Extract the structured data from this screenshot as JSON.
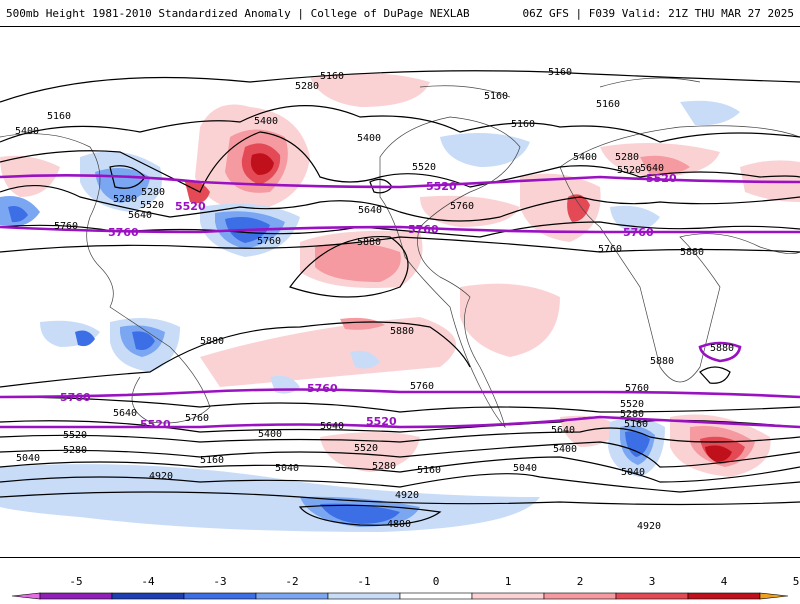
{
  "header": {
    "title": "500mb Height 1981-2010 Standardized Anomaly | College of DuPage NEXLAB",
    "run_info": "06Z GFS | F039 Valid: 21Z THU MAR 27 2025"
  },
  "contour_labels": [
    "5160",
    "5160",
    "5280",
    "5160",
    "5160",
    "5400",
    "5160",
    "5400",
    "5400",
    "5160",
    "5280",
    "5520",
    "5400",
    "5280",
    "5640",
    "5520",
    "5640",
    "5280",
    "5520",
    "5640",
    "5760",
    "5760",
    "5760",
    "5760",
    "5880",
    "5880",
    "5880",
    "5880",
    "5880",
    "5760",
    "5760",
    "5640",
    "5760",
    "5520",
    "5280",
    "5040",
    "5400",
    "5640",
    "5520",
    "5160",
    "5280",
    "5040",
    "5160",
    "5040",
    "5400",
    "5640",
    "5520",
    "5280",
    "5160",
    "5040",
    "4920",
    "4920",
    "4800",
    "4920",
    "5880"
  ],
  "purple_labels": [
    "5520",
    "5520",
    "5520",
    "5760",
    "5760",
    "5760",
    "5760",
    "5760",
    "5520",
    "5520"
  ],
  "colorbar": {
    "ticks": [
      "-5",
      "-4",
      "-3",
      "-2",
      "-1",
      "0",
      "1",
      "2",
      "3",
      "4",
      "5"
    ],
    "colors": [
      "#e66be6",
      "#8f1fb8",
      "#1e3eb4",
      "#3c6ee6",
      "#7aa6f2",
      "#c8dcf8",
      "#ffffff",
      "#fbd2d4",
      "#f59aa0",
      "#e44a55",
      "#c0101c",
      "#f0a020"
    ]
  }
}
